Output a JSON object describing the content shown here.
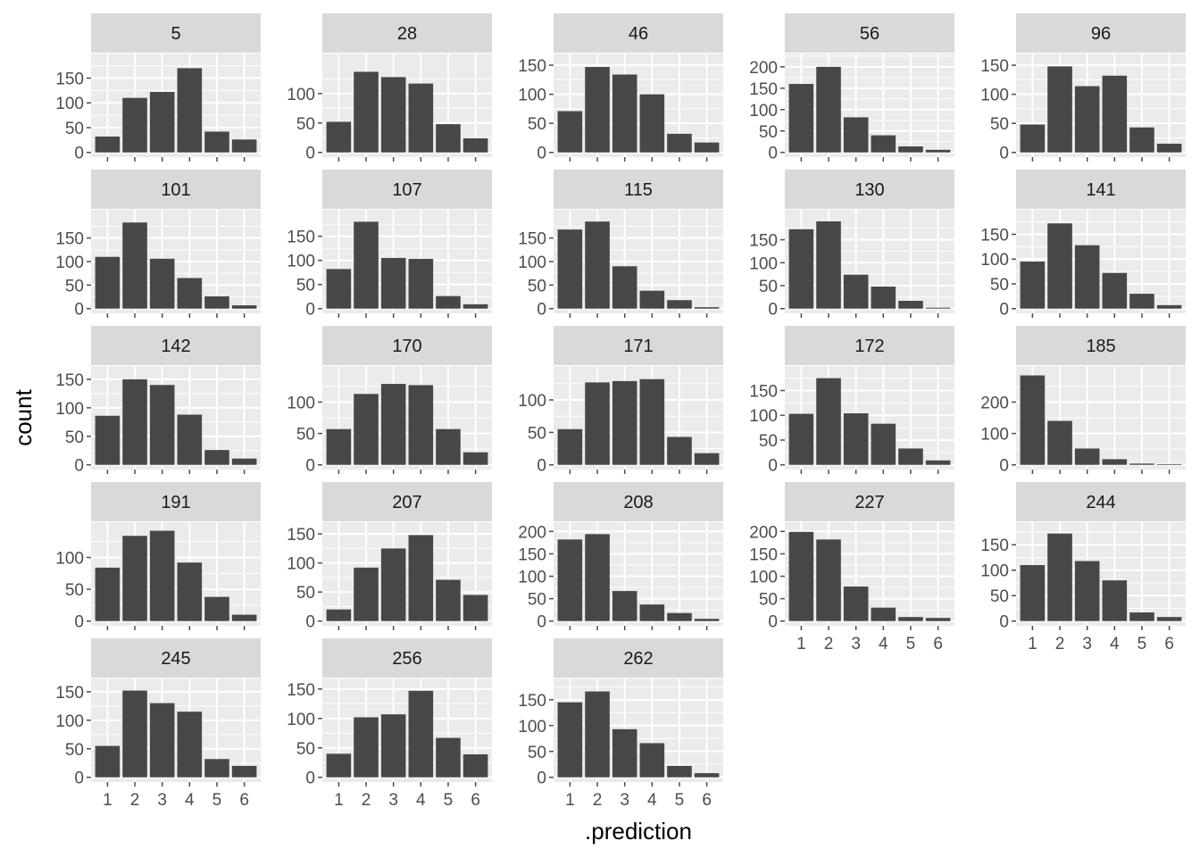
{
  "chart_data": {
    "type": "bar",
    "xlabel": ".prediction",
    "ylabel": "count",
    "categories": [
      "1",
      "2",
      "3",
      "4",
      "5",
      "6"
    ],
    "grid": true,
    "colors": {
      "bar": "#474747",
      "panel": "#ebebeb",
      "strip": "#d9d9d9",
      "grid": "#ffffff",
      "tick": "#4d4d4d",
      "title": "#000000"
    },
    "facets": [
      {
        "label": "5",
        "values": [
          32,
          110,
          122,
          170,
          42,
          26
        ],
        "ylim": [
          0,
          190
        ],
        "yticks": [
          0,
          50,
          100,
          150
        ]
      },
      {
        "label": "28",
        "values": [
          52,
          137,
          128,
          117,
          48,
          24
        ],
        "ylim": [
          0,
          160
        ],
        "yticks": [
          0,
          50,
          100
        ]
      },
      {
        "label": "46",
        "values": [
          71,
          147,
          134,
          100,
          32,
          17
        ],
        "ylim": [
          0,
          162
        ],
        "yticks": [
          0,
          50,
          100,
          150
        ]
      },
      {
        "label": "56",
        "values": [
          160,
          200,
          82,
          40,
          14,
          6
        ],
        "ylim": [
          0,
          220
        ],
        "yticks": [
          0,
          50,
          100,
          150,
          200
        ]
      },
      {
        "label": "96",
        "values": [
          48,
          148,
          114,
          132,
          43,
          15
        ],
        "ylim": [
          0,
          162
        ],
        "yticks": [
          0,
          50,
          100,
          150
        ]
      },
      {
        "label": "101",
        "values": [
          110,
          183,
          106,
          65,
          26,
          7
        ],
        "ylim": [
          0,
          200
        ],
        "yticks": [
          0,
          50,
          100,
          150
        ]
      },
      {
        "label": "107",
        "values": [
          82,
          180,
          105,
          103,
          26,
          9
        ],
        "ylim": [
          0,
          195
        ],
        "yticks": [
          0,
          50,
          100,
          150
        ]
      },
      {
        "label": "115",
        "values": [
          168,
          185,
          90,
          38,
          18,
          3
        ],
        "ylim": [
          0,
          200
        ],
        "yticks": [
          0,
          50,
          100,
          150
        ]
      },
      {
        "label": "130",
        "values": [
          173,
          190,
          74,
          48,
          17,
          2
        ],
        "ylim": [
          0,
          205
        ],
        "yticks": [
          0,
          50,
          100,
          150
        ]
      },
      {
        "label": "141",
        "values": [
          95,
          172,
          128,
          72,
          30,
          7
        ],
        "ylim": [
          0,
          190
        ],
        "yticks": [
          0,
          50,
          100,
          150
        ]
      },
      {
        "label": "142",
        "values": [
          86,
          150,
          140,
          88,
          26,
          11
        ],
        "ylim": [
          0,
          165
        ],
        "yticks": [
          0,
          50,
          100,
          150
        ]
      },
      {
        "label": "170",
        "values": [
          57,
          113,
          129,
          127,
          57,
          20
        ],
        "ylim": [
          0,
          150
        ],
        "yticks": [
          0,
          50,
          100
        ]
      },
      {
        "label": "171",
        "values": [
          55,
          127,
          129,
          132,
          43,
          18
        ],
        "ylim": [
          0,
          145
        ],
        "yticks": [
          0,
          50,
          100
        ]
      },
      {
        "label": "172",
        "values": [
          103,
          175,
          104,
          83,
          33,
          9
        ],
        "ylim": [
          0,
          190
        ],
        "yticks": [
          0,
          50,
          100,
          150
        ]
      },
      {
        "label": "185",
        "values": [
          285,
          140,
          52,
          18,
          4,
          2
        ],
        "ylim": [
          0,
          300
        ],
        "yticks": [
          0,
          100,
          200
        ]
      },
      {
        "label": "191",
        "values": [
          84,
          134,
          142,
          92,
          38,
          10
        ],
        "ylim": [
          0,
          148
        ],
        "yticks": [
          0,
          50,
          100
        ]
      },
      {
        "label": "207",
        "values": [
          20,
          92,
          125,
          148,
          71,
          45
        ],
        "ylim": [
          0,
          162
        ],
        "yticks": [
          0,
          50,
          100,
          150
        ]
      },
      {
        "label": "208",
        "values": [
          182,
          194,
          67,
          37,
          18,
          5
        ],
        "ylim": [
          0,
          210
        ],
        "yticks": [
          0,
          50,
          100,
          150,
          200
        ]
      },
      {
        "label": "227",
        "values": [
          199,
          182,
          77,
          30,
          9,
          7
        ],
        "ylim": [
          0,
          210
        ],
        "yticks": [
          0,
          50,
          100,
          150,
          200
        ]
      },
      {
        "label": "244",
        "values": [
          110,
          172,
          118,
          80,
          17,
          8
        ],
        "ylim": [
          0,
          185
        ],
        "yticks": [
          0,
          50,
          100,
          150
        ]
      },
      {
        "label": "245",
        "values": [
          55,
          152,
          130,
          115,
          32,
          20
        ],
        "ylim": [
          0,
          165
        ],
        "yticks": [
          0,
          50,
          100,
          150
        ]
      },
      {
        "label": "256",
        "values": [
          40,
          102,
          107,
          147,
          67,
          39
        ],
        "ylim": [
          0,
          160
        ],
        "yticks": [
          0,
          50,
          100,
          150
        ]
      },
      {
        "label": "262",
        "values": [
          145,
          166,
          93,
          66,
          22,
          8
        ],
        "ylim": [
          0,
          182
        ],
        "yticks": [
          0,
          50,
          100,
          150
        ]
      }
    ]
  }
}
